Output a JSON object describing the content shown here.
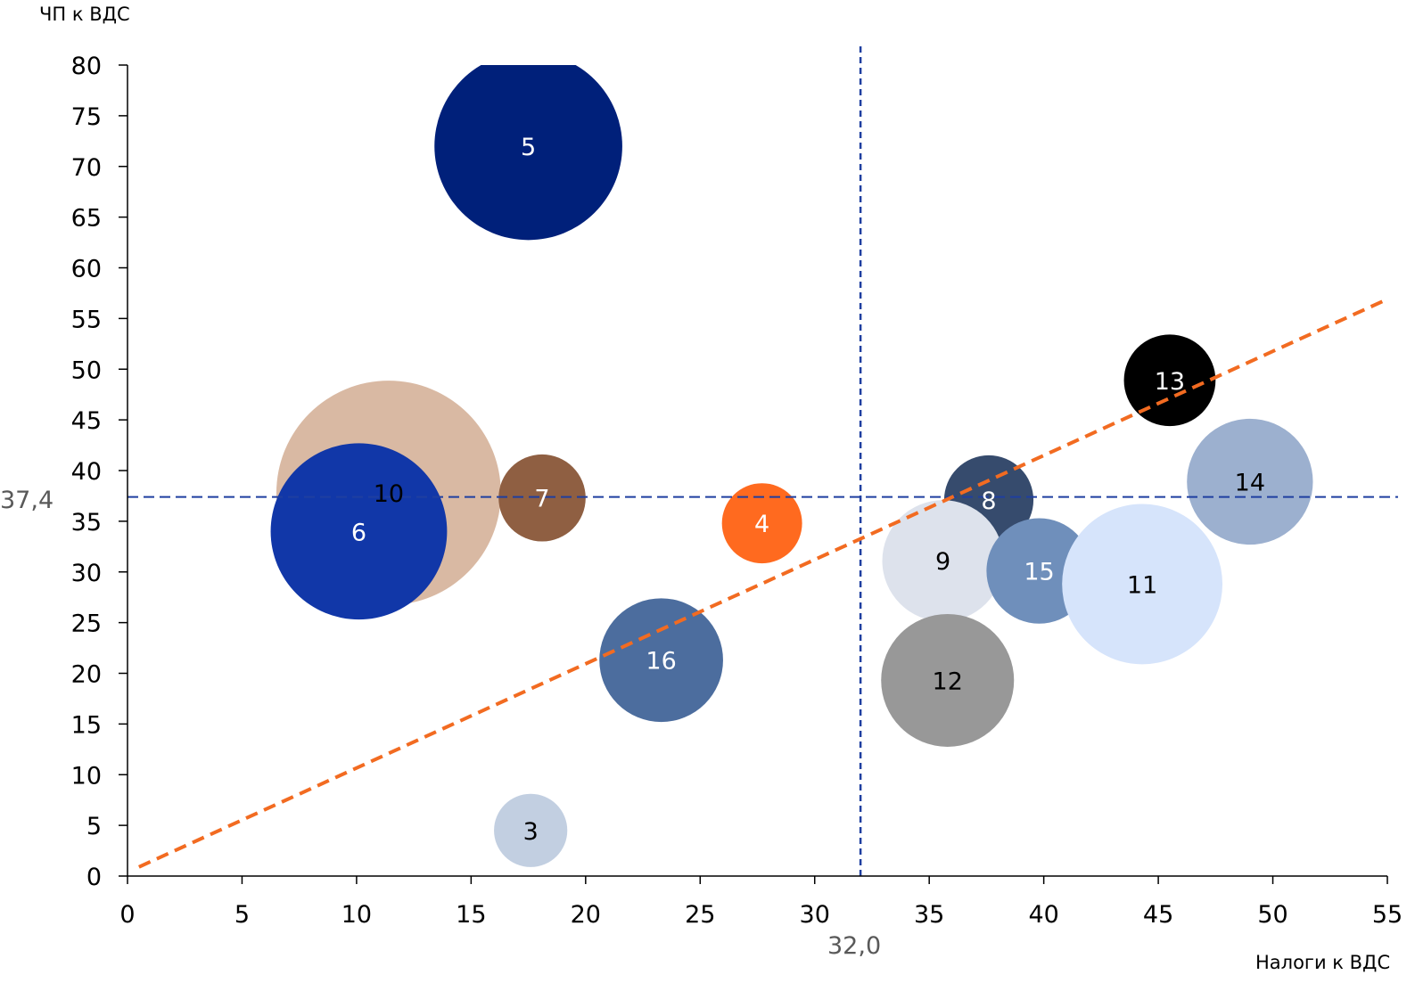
{
  "chart_data": {
    "type": "bubble",
    "title": "",
    "xlabel": "Налоги к ВДС",
    "ylabel": "ЧП к ВДС",
    "xlim": [
      0,
      55
    ],
    "ylim": [
      0,
      80
    ],
    "x_ticks": [
      0,
      5,
      10,
      15,
      20,
      25,
      30,
      35,
      40,
      45,
      50,
      55
    ],
    "y_ticks": [
      0,
      5,
      10,
      15,
      20,
      25,
      30,
      35,
      40,
      45,
      50,
      55,
      60,
      65,
      70,
      75,
      80
    ],
    "grid": false,
    "legend": "none",
    "reference_lines": {
      "horizontal": {
        "value": 37.4,
        "label": "37,4",
        "color": "#1f3fa0"
      },
      "vertical": {
        "value": 32.0,
        "label": "32,0",
        "color": "#1f3fa0"
      }
    },
    "trend_line": {
      "color": "#f26b21",
      "from": [
        0.5,
        0.9
      ],
      "to": [
        54.9,
        56.8
      ]
    },
    "points": [
      {
        "label": "5",
        "x": 17.5,
        "y": 72.0,
        "size": 8.2,
        "color": "#00207a",
        "text_color": "#ffffff"
      },
      {
        "label": "10",
        "x": 11.4,
        "y": 37.8,
        "size": 9.8,
        "color": "#d9b9a3",
        "text_color": "#000000"
      },
      {
        "label": "6",
        "x": 10.1,
        "y": 34.0,
        "size": 7.7,
        "color": "#1137a8",
        "text_color": "#ffffff"
      },
      {
        "label": "7",
        "x": 18.1,
        "y": 37.3,
        "size": 3.8,
        "color": "#8f5f42",
        "text_color": "#ffffff"
      },
      {
        "label": "4",
        "x": 27.7,
        "y": 34.8,
        "size": 3.5,
        "color": "#ff6a1f",
        "text_color": "#ffffff"
      },
      {
        "label": "16",
        "x": 23.3,
        "y": 21.3,
        "size": 5.4,
        "color": "#4c6d9e",
        "text_color": "#ffffff"
      },
      {
        "label": "3",
        "x": 17.6,
        "y": 4.5,
        "size": 3.2,
        "color": "#c2cfe1",
        "text_color": "#000000"
      },
      {
        "label": "13",
        "x": 45.5,
        "y": 48.9,
        "size": 4.0,
        "color": "#000000",
        "text_color": "#ffffff"
      },
      {
        "label": "14",
        "x": 49.0,
        "y": 38.9,
        "size": 5.5,
        "color": "#9cb0cf",
        "text_color": "#000000"
      },
      {
        "label": "8",
        "x": 37.6,
        "y": 37.1,
        "size": 3.9,
        "color": "#364b6d",
        "text_color": "#ffffff"
      },
      {
        "label": "9",
        "x": 35.6,
        "y": 31.1,
        "size": 5.3,
        "color": "#dde2ec",
        "text_color": "#000000"
      },
      {
        "label": "15",
        "x": 39.8,
        "y": 30.1,
        "size": 4.6,
        "color": "#6f8fbb",
        "text_color": "#ffffff"
      },
      {
        "label": "11",
        "x": 44.3,
        "y": 28.8,
        "size": 7.0,
        "color": "#d6e4fb",
        "text_color": "#000000"
      },
      {
        "label": "12",
        "x": 35.8,
        "y": 19.3,
        "size": 5.8,
        "color": "#989898",
        "text_color": "#000000"
      }
    ]
  }
}
